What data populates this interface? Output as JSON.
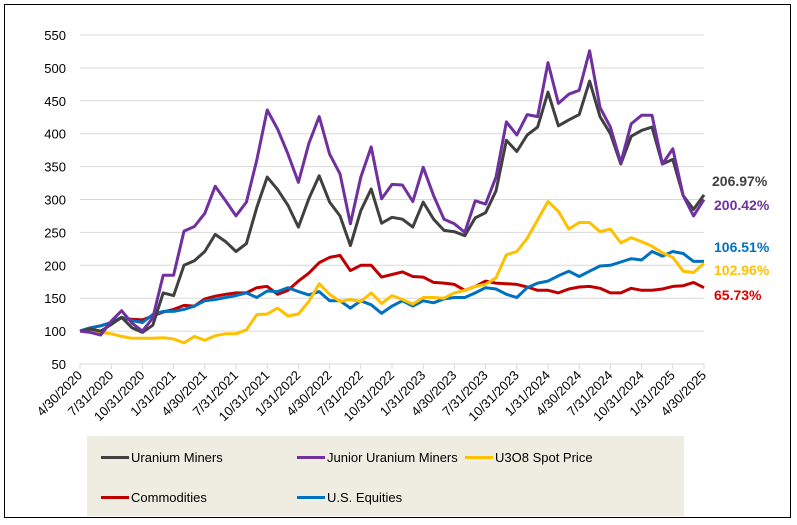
{
  "chart_data": {
    "type": "line",
    "title": "",
    "xlabel": "",
    "ylabel": "",
    "ylim": [
      50,
      550
    ],
    "yticks": [
      50,
      100,
      150,
      200,
      250,
      300,
      350,
      400,
      450,
      500,
      550
    ],
    "grid": true,
    "legend_position": "bottom",
    "x_start": "4/30/2020",
    "x_end": "4/30/2025",
    "x_frequency": "monthly",
    "xtick_labels": [
      "4/30/2020",
      "7/31/2020",
      "10/31/2020",
      "1/31/2021",
      "4/30/2021",
      "7/31/2021",
      "10/31/2021",
      "1/31/2022",
      "4/30/2022",
      "7/31/2022",
      "10/31/2022",
      "1/31/2023",
      "4/30/2023",
      "7/31/2023",
      "10/31/2023",
      "1/31/2024",
      "4/30/2024",
      "7/31/2024",
      "10/31/2024",
      "1/31/2025",
      "4/30/2025"
    ],
    "series": [
      {
        "name": "Uranium Miners",
        "color": "#404040",
        "end_label": "206.97%",
        "values": [
          100,
          103,
          100,
          110,
          121,
          105,
          98,
          109,
          158,
          154,
          200,
          207,
          221,
          247,
          236,
          221,
          233,
          288,
          334,
          315,
          291,
          258,
          301,
          336,
          296,
          275,
          230,
          283,
          316,
          264,
          273,
          270,
          258,
          296,
          270,
          253,
          251,
          245,
          272,
          280,
          313,
          390,
          373,
          398,
          410,
          463,
          412,
          421,
          429,
          480,
          426,
          400,
          354,
          396,
          405,
          410,
          354,
          361,
          306,
          285,
          307
        ]
      },
      {
        "name": "Junior Uranium Miners",
        "color": "#7030a0",
        "end_label": "200.42%",
        "values": [
          100,
          98,
          94,
          115,
          131,
          112,
          100,
          120,
          185,
          185,
          252,
          259,
          279,
          320,
          298,
          275,
          296,
          360,
          436,
          407,
          369,
          326,
          385,
          426,
          369,
          339,
          263,
          334,
          380,
          301,
          323,
          322,
          297,
          349,
          306,
          270,
          263,
          250,
          298,
          293,
          334,
          418,
          398,
          429,
          426,
          508,
          446,
          460,
          466,
          526,
          440,
          410,
          356,
          415,
          428,
          428,
          354,
          377,
          306,
          275,
          300
        ]
      },
      {
        "name": "U3O8 Spot Price",
        "color": "#ffc000",
        "end_label": "102.96%",
        "values": [
          100,
          100,
          98,
          96,
          92,
          89,
          89,
          89,
          90,
          88,
          82,
          92,
          86,
          93,
          96,
          96,
          102,
          125,
          126,
          135,
          123,
          126,
          145,
          172,
          156,
          145,
          148,
          145,
          158,
          142,
          154,
          148,
          141,
          151,
          151,
          150,
          158,
          162,
          168,
          171,
          181,
          216,
          221,
          241,
          269,
          297,
          282,
          255,
          265,
          265,
          251,
          255,
          234,
          242,
          236,
          229,
          219,
          212,
          191,
          189,
          203
        ]
      },
      {
        "name": "Commodities",
        "color": "#c00000",
        "end_label": "65.73%",
        "values": [
          100,
          105,
          108,
          113,
          120,
          118,
          117,
          123,
          129,
          133,
          139,
          138,
          149,
          153,
          156,
          158,
          158,
          166,
          168,
          156,
          162,
          176,
          188,
          204,
          212,
          215,
          192,
          200,
          200,
          182,
          186,
          190,
          183,
          182,
          174,
          173,
          171,
          162,
          168,
          176,
          173,
          172,
          171,
          167,
          162,
          162,
          158,
          164,
          167,
          168,
          165,
          158,
          158,
          165,
          162,
          162,
          164,
          168,
          169,
          174,
          166
        ]
      },
      {
        "name": "U.S. Equities",
        "color": "#0070c0",
        "end_label": "106.51%",
        "values": [
          100,
          105,
          108,
          113,
          121,
          116,
          113,
          125,
          130,
          130,
          133,
          138,
          146,
          148,
          151,
          154,
          158,
          151,
          161,
          160,
          166,
          160,
          155,
          160,
          146,
          146,
          135,
          146,
          140,
          127,
          138,
          146,
          138,
          146,
          143,
          149,
          151,
          151,
          158,
          166,
          164,
          156,
          151,
          166,
          173,
          176,
          184,
          191,
          183,
          191,
          199,
          200,
          205,
          210,
          208,
          221,
          214,
          221,
          218,
          206,
          206
        ]
      }
    ]
  }
}
